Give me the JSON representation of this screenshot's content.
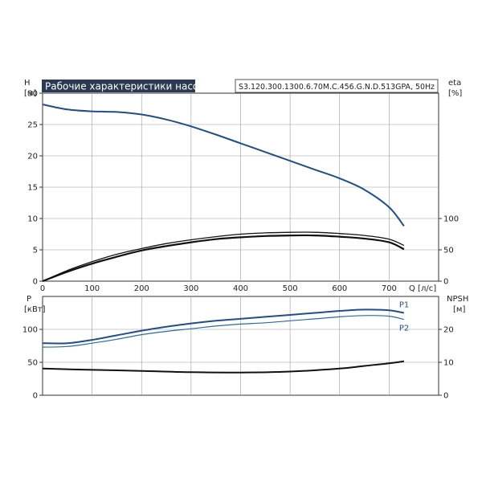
{
  "colors": {
    "head_curve": "#1f4e8c",
    "efficiency_curves": "#111111",
    "p1": "#1f4e8c",
    "p2": "#2a6aa8",
    "npsh": "#111111",
    "grid": "#9a9a9a",
    "title_bg": "#2b3a52"
  },
  "header": {
    "title": "Рабочие характеристики насоса",
    "model": "S3.120.300.1300.6.70M.C.456.G.N.D.513GPA, 50Hz"
  },
  "chart_data": [
    {
      "type": "line",
      "name": "top-panel",
      "x_label": "Q [л/с]",
      "left_axis": {
        "label": "H",
        "unit": "[м]",
        "ylim": [
          0,
          30
        ],
        "ticks": [
          0,
          5,
          10,
          15,
          20,
          25,
          30
        ]
      },
      "right_axis": {
        "label": "eta",
        "unit": "[%]",
        "ylim": [
          0,
          300
        ],
        "ticks": [
          0,
          50,
          100
        ]
      },
      "xlim": [
        0,
        800
      ],
      "x_ticks": [
        0,
        100,
        200,
        300,
        400,
        500,
        600,
        700
      ],
      "grid": true,
      "series": [
        {
          "axis": "left",
          "points": [
            [
              0,
              28.2
            ],
            [
              50,
              27.4
            ],
            [
              100,
              27.1
            ],
            [
              150,
              27.0
            ],
            [
              200,
              26.6
            ],
            [
              250,
              25.8
            ],
            [
              300,
              24.7
            ],
            [
              350,
              23.4
            ],
            [
              400,
              22.0
            ],
            [
              450,
              20.6
            ],
            [
              500,
              19.2
            ],
            [
              550,
              17.8
            ],
            [
              600,
              16.4
            ],
            [
              650,
              14.6
            ],
            [
              700,
              11.8
            ],
            [
              730,
              8.8
            ]
          ]
        },
        {
          "axis": "right",
          "points": [
            [
              0,
              0
            ],
            [
              50,
              17
            ],
            [
              100,
              31
            ],
            [
              150,
              43
            ],
            [
              200,
              52
            ],
            [
              250,
              60
            ],
            [
              300,
              66
            ],
            [
              350,
              71
            ],
            [
              400,
              75
            ],
            [
              450,
              77
            ],
            [
              500,
              78
            ],
            [
              550,
              78
            ],
            [
              600,
              76
            ],
            [
              650,
              73
            ],
            [
              700,
              67
            ],
            [
              730,
              57
            ]
          ]
        },
        {
          "axis": "right",
          "points": [
            [
              0,
              0
            ],
            [
              50,
              15
            ],
            [
              100,
              28
            ],
            [
              150,
              39
            ],
            [
              200,
              49
            ],
            [
              250,
              56
            ],
            [
              300,
              62
            ],
            [
              350,
              67
            ],
            [
              400,
              70
            ],
            [
              450,
              72
            ],
            [
              500,
              73
            ],
            [
              550,
              73
            ],
            [
              600,
              71
            ],
            [
              650,
              68
            ],
            [
              700,
              62
            ],
            [
              730,
              51
            ]
          ]
        }
      ]
    },
    {
      "type": "line",
      "name": "bottom-panel",
      "left_axis": {
        "label": "P",
        "unit": "[кВт]",
        "ylim": [
          0,
          150
        ],
        "ticks": [
          0,
          50,
          100
        ]
      },
      "right_axis": {
        "label": "NPSH",
        "unit": "[м]",
        "ylim": [
          0,
          30
        ],
        "ticks": [
          0,
          10,
          20
        ]
      },
      "xlim": [
        0,
        800
      ],
      "grid": true,
      "series": [
        {
          "name": "P1",
          "axis": "left",
          "points": [
            [
              0,
              79
            ],
            [
              50,
              79
            ],
            [
              100,
              84
            ],
            [
              150,
              91
            ],
            [
              200,
              98
            ],
            [
              250,
              104
            ],
            [
              300,
              109
            ],
            [
              350,
              113
            ],
            [
              400,
              116
            ],
            [
              450,
              119
            ],
            [
              500,
              122
            ],
            [
              550,
              125
            ],
            [
              600,
              128
            ],
            [
              650,
              130
            ],
            [
              700,
              129
            ],
            [
              730,
              125
            ]
          ]
        },
        {
          "name": "P2",
          "axis": "left",
          "points": [
            [
              0,
              73
            ],
            [
              50,
              74
            ],
            [
              100,
              79
            ],
            [
              150,
              85
            ],
            [
              200,
              92
            ],
            [
              250,
              97
            ],
            [
              300,
              101
            ],
            [
              350,
              105
            ],
            [
              400,
              108
            ],
            [
              450,
              110
            ],
            [
              500,
              113
            ],
            [
              550,
              116
            ],
            [
              600,
              119
            ],
            [
              650,
              121
            ],
            [
              700,
              120
            ],
            [
              730,
              115
            ]
          ]
        },
        {
          "axis": "right",
          "points": [
            [
              0,
              8.1
            ],
            [
              100,
              7.7
            ],
            [
              200,
              7.4
            ],
            [
              300,
              7.0
            ],
            [
              400,
              6.9
            ],
            [
              500,
              7.2
            ],
            [
              600,
              8.1
            ],
            [
              650,
              8.9
            ],
            [
              700,
              9.7
            ],
            [
              730,
              10.3
            ]
          ]
        }
      ]
    }
  ]
}
